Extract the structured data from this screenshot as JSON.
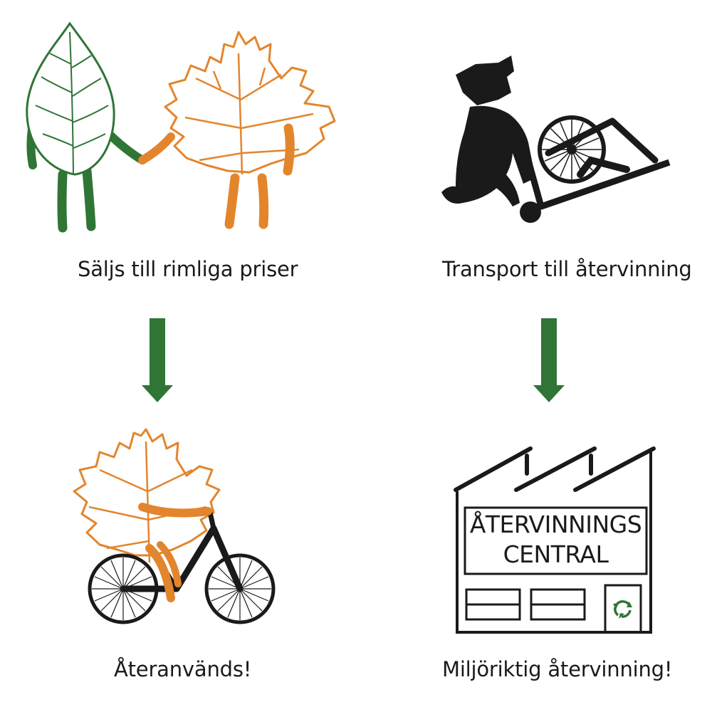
{
  "colors": {
    "green": "#2f7535",
    "orange": "#e3852c",
    "black": "#1a1a1a",
    "background": "#ffffff"
  },
  "steps": {
    "sell": {
      "caption": "Säljs till rimliga priser",
      "icons": [
        "green-leaf-character-icon",
        "orange-maple-leaf-character-icon"
      ]
    },
    "transport": {
      "caption": "Transport till återvinning",
      "icons": [
        "person-pushing-cart-with-bicycle-icon"
      ]
    },
    "reuse": {
      "caption": "Återanvänds!",
      "icons": [
        "maple-leaf-riding-bicycle-icon"
      ]
    },
    "recycle": {
      "caption": "Miljöriktig återvinning!",
      "icons": [
        "recycling-factory-icon",
        "recycle-symbol-icon"
      ],
      "sign_line1": "ÅTERVINNINGS",
      "sign_line2": "CENTRAL"
    }
  },
  "arrows": [
    "down-arrow-left",
    "down-arrow-right"
  ]
}
